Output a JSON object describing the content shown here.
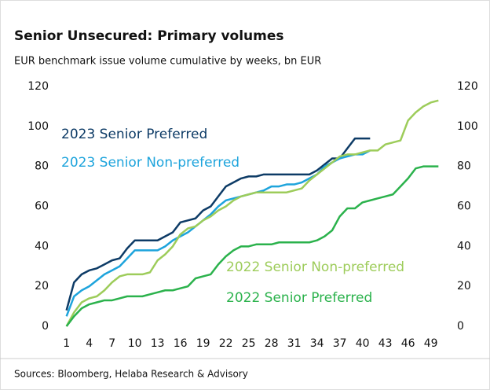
{
  "chart_data": {
    "type": "line",
    "title": "Senior Unsecured: Primary volumes",
    "subtitle": "EUR benchmark issue volume cumulative by weeks, bn EUR",
    "source": "Sources: Bloomberg, Helaba Research & Advisory",
    "x": [
      1,
      2,
      3,
      4,
      5,
      6,
      7,
      8,
      9,
      10,
      11,
      12,
      13,
      14,
      15,
      16,
      17,
      18,
      19,
      20,
      21,
      22,
      23,
      24,
      25,
      26,
      27,
      28,
      29,
      30,
      31,
      32,
      33,
      34,
      35,
      36,
      37,
      38,
      39,
      40,
      41,
      42,
      43,
      44,
      45,
      46,
      47,
      48,
      49,
      50
    ],
    "xlim": [
      0,
      51
    ],
    "xticks": [
      1,
      4,
      7,
      10,
      13,
      16,
      19,
      22,
      25,
      28,
      31,
      34,
      37,
      40,
      43,
      46,
      49
    ],
    "ylim": [
      0,
      120
    ],
    "yticks": [
      0,
      20,
      40,
      60,
      80,
      100,
      120
    ],
    "series": [
      {
        "name": "2023 Senior Preferred",
        "color": "#0d3b66",
        "values": [
          8,
          22,
          26,
          28,
          29,
          31,
          33,
          34,
          39,
          43,
          43,
          43,
          43,
          45,
          47,
          52,
          53,
          54,
          58,
          60,
          65,
          70,
          72,
          74,
          75,
          75,
          76,
          76,
          76,
          76,
          76,
          76,
          76,
          78,
          81,
          84,
          84,
          89,
          94,
          94,
          94,
          null,
          null,
          null,
          null,
          null,
          null,
          null,
          null,
          null
        ]
      },
      {
        "name": "2023 Senior Non-preferred",
        "color": "#1ea4dc",
        "values": [
          5,
          15,
          18,
          20,
          23,
          26,
          28,
          30,
          34,
          38,
          38,
          38,
          38,
          40,
          43,
          45,
          47,
          50,
          53,
          56,
          60,
          63,
          64,
          65,
          66,
          67,
          68,
          70,
          70,
          71,
          71,
          72,
          74,
          76,
          80,
          82,
          84,
          85,
          86,
          86,
          88,
          null,
          null,
          null,
          null,
          null,
          null,
          null,
          null,
          null
        ]
      },
      {
        "name": "2022 Senior Non-preferred",
        "color": "#9dcc5a",
        "values": [
          0,
          7,
          12,
          14,
          15,
          18,
          22,
          25,
          26,
          26,
          26,
          27,
          33,
          36,
          40,
          46,
          49,
          50,
          53,
          55,
          58,
          60,
          63,
          65,
          66,
          67,
          67,
          67,
          67,
          67,
          68,
          69,
          73,
          76,
          79,
          82,
          85,
          86,
          86,
          87,
          88,
          88,
          91,
          92,
          93,
          103,
          107,
          110,
          112,
          113
        ]
      },
      {
        "name": "2022 Senior Preferred",
        "color": "#2bb24c",
        "values": [
          0,
          5,
          9,
          11,
          12,
          13,
          13,
          14,
          15,
          15,
          15,
          16,
          17,
          18,
          18,
          19,
          20,
          24,
          25,
          26,
          31,
          35,
          38,
          40,
          40,
          41,
          41,
          41,
          42,
          42,
          42,
          42,
          42,
          43,
          45,
          48,
          55,
          59,
          59,
          62,
          63,
          64,
          65,
          66,
          70,
          74,
          79,
          80,
          80,
          80
        ]
      }
    ]
  }
}
